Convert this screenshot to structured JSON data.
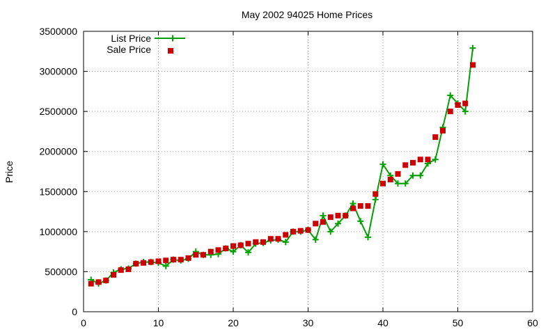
{
  "chart_data": {
    "type": "line",
    "title": "May 2002 94025 Home Prices",
    "xlabel": "",
    "ylabel": "Price",
    "xlim": [
      0,
      60
    ],
    "ylim": [
      0,
      3500000
    ],
    "x_ticks": [
      "0",
      "10",
      "20",
      "30",
      "40",
      "50",
      "60"
    ],
    "y_ticks": [
      "0",
      "500000",
      "1000000",
      "1500000",
      "2000000",
      "2500000",
      "3000000",
      "3500000"
    ],
    "grid": true,
    "legend_position": "top-left",
    "series": [
      {
        "name": "List Price",
        "style": "line-with-plus-markers",
        "color": "#00a000",
        "x": [
          1,
          2,
          3,
          4,
          5,
          6,
          7,
          8,
          9,
          10,
          11,
          12,
          13,
          14,
          15,
          16,
          17,
          18,
          19,
          20,
          21,
          22,
          23,
          24,
          25,
          26,
          27,
          28,
          29,
          30,
          31,
          32,
          33,
          34,
          35,
          36,
          37,
          38,
          39,
          40,
          41,
          42,
          43,
          44,
          45,
          46,
          47,
          48,
          49,
          50,
          51,
          52
        ],
        "values": [
          400000,
          350000,
          390000,
          490000,
          530000,
          540000,
          600000,
          620000,
          620000,
          610000,
          570000,
          650000,
          640000,
          660000,
          750000,
          710000,
          710000,
          720000,
          790000,
          750000,
          830000,
          740000,
          850000,
          860000,
          890000,
          900000,
          870000,
          1000000,
          1000000,
          1020000,
          900000,
          1200000,
          1000000,
          1100000,
          1200000,
          1350000,
          1130000,
          930000,
          1400000,
          1840000,
          1700000,
          1600000,
          1600000,
          1700000,
          1700000,
          1850000,
          1900000,
          2300000,
          2700000,
          2600000,
          2500000,
          3290000
        ]
      },
      {
        "name": "Sale Price",
        "style": "square-markers",
        "color": "#cc0000",
        "x": [
          1,
          2,
          3,
          4,
          5,
          6,
          7,
          8,
          9,
          10,
          11,
          12,
          13,
          14,
          15,
          16,
          17,
          18,
          19,
          20,
          21,
          22,
          23,
          24,
          25,
          26,
          27,
          28,
          29,
          30,
          31,
          32,
          33,
          34,
          35,
          36,
          37,
          38,
          39,
          40,
          41,
          42,
          43,
          44,
          45,
          46,
          47,
          48,
          49,
          50,
          51,
          52
        ],
        "values": [
          350000,
          370000,
          390000,
          460000,
          520000,
          530000,
          600000,
          610000,
          620000,
          630000,
          640000,
          650000,
          650000,
          670000,
          710000,
          710000,
          750000,
          770000,
          790000,
          820000,
          830000,
          850000,
          870000,
          870000,
          910000,
          910000,
          960000,
          1000000,
          1010000,
          1020000,
          1100000,
          1120000,
          1180000,
          1200000,
          1200000,
          1290000,
          1320000,
          1320000,
          1470000,
          1600000,
          1650000,
          1720000,
          1830000,
          1860000,
          1900000,
          1900000,
          2180000,
          2260000,
          2500000,
          2580000,
          2600000,
          3080000
        ]
      }
    ]
  }
}
